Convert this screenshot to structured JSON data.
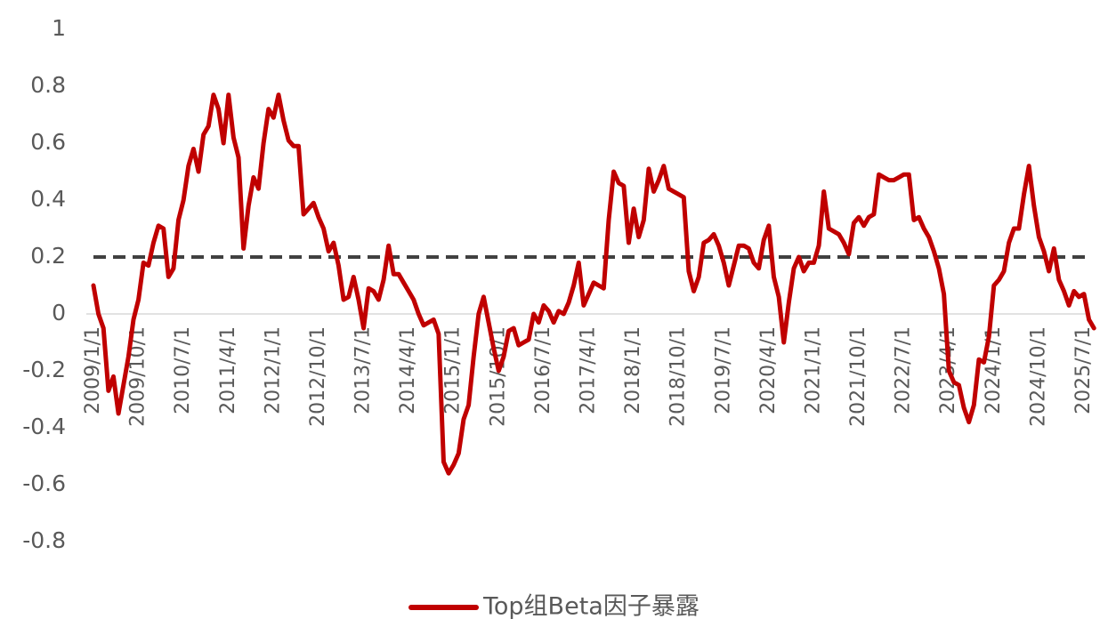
{
  "chart_data": {
    "type": "line",
    "categories": [
      "2009/1/1",
      null,
      null,
      null,
      null,
      null,
      null,
      null,
      null,
      "2009/10/1",
      null,
      null,
      null,
      null,
      null,
      null,
      null,
      null,
      "2010/7/1",
      null,
      null,
      null,
      null,
      null,
      null,
      null,
      null,
      "2011/4/1",
      null,
      null,
      null,
      null,
      null,
      null,
      null,
      null,
      "2012/1/1",
      null,
      null,
      null,
      null,
      null,
      null,
      null,
      null,
      "2012/10/1",
      null,
      null,
      null,
      null,
      null,
      null,
      null,
      null,
      "2013/7/1",
      null,
      null,
      null,
      null,
      null,
      null,
      null,
      null,
      "2014/4/1",
      null,
      null,
      null,
      null,
      null,
      null,
      null,
      null,
      "2015/1/1",
      null,
      null,
      null,
      null,
      null,
      null,
      null,
      null,
      "2015/10/1",
      null,
      null,
      null,
      null,
      null,
      null,
      null,
      null,
      "2016/7/1",
      null,
      null,
      null,
      null,
      null,
      null,
      null,
      null,
      "2017/4/1",
      null,
      null,
      null,
      null,
      null,
      null,
      null,
      null,
      "2018/1/1",
      null,
      null,
      null,
      null,
      null,
      null,
      null,
      null,
      "2018/10/1",
      null,
      null,
      null,
      null,
      null,
      null,
      null,
      null,
      "2019/7/1",
      null,
      null,
      null,
      null,
      null,
      null,
      null,
      null,
      "2020/4/1",
      null,
      null,
      null,
      null,
      null,
      null,
      null,
      null,
      "2021/1/1",
      null,
      null,
      null,
      null,
      null,
      null,
      null,
      null,
      "2021/10/1",
      null,
      null,
      null,
      null,
      null,
      null,
      null,
      null,
      "2022/7/1",
      null,
      null,
      null,
      null,
      null,
      null,
      null,
      null,
      "2023/4/1",
      null,
      null,
      null,
      null,
      null,
      null,
      null,
      null,
      "2024/1/1",
      null,
      null,
      null,
      null,
      null,
      null,
      null,
      null,
      "2024/10/1",
      null,
      null,
      null,
      null,
      null,
      null,
      null,
      null,
      "2025/7/1",
      null,
      null
    ],
    "series": [
      {
        "name": "Top组Beta因子暴露",
        "color": "#c00000",
        "values": [
          0.1,
          0.0,
          -0.05,
          -0.27,
          -0.22,
          -0.35,
          -0.25,
          -0.15,
          -0.02,
          0.05,
          0.18,
          0.17,
          0.25,
          0.31,
          0.3,
          0.13,
          0.16,
          0.33,
          0.4,
          0.52,
          0.58,
          0.5,
          0.63,
          0.66,
          0.77,
          0.72,
          0.6,
          0.77,
          0.62,
          0.55,
          0.23,
          0.38,
          0.48,
          0.44,
          0.6,
          0.72,
          0.69,
          0.77,
          0.68,
          0.61,
          0.59,
          0.59,
          0.35,
          0.37,
          0.39,
          0.34,
          0.3,
          0.22,
          0.25,
          0.17,
          0.05,
          0.06,
          0.13,
          0.05,
          -0.05,
          0.09,
          0.08,
          0.05,
          0.12,
          0.24,
          0.14,
          0.14,
          0.11,
          0.08,
          0.05,
          0.0,
          -0.04,
          -0.03,
          -0.02,
          -0.07,
          -0.52,
          -0.56,
          -0.53,
          -0.49,
          -0.37,
          -0.32,
          -0.15,
          0.0,
          0.06,
          -0.03,
          -0.12,
          -0.2,
          -0.15,
          -0.06,
          -0.05,
          -0.11,
          -0.1,
          -0.09,
          0.0,
          -0.03,
          0.03,
          0.01,
          -0.03,
          0.01,
          0.0,
          0.04,
          0.1,
          0.18,
          0.03,
          0.07,
          0.11,
          0.1,
          0.09,
          0.33,
          0.5,
          0.46,
          0.45,
          0.25,
          0.37,
          0.27,
          0.33,
          0.51,
          0.43,
          0.47,
          0.52,
          0.44,
          0.43,
          0.42,
          0.41,
          0.15,
          0.08,
          0.13,
          0.25,
          0.26,
          0.28,
          0.24,
          0.18,
          0.1,
          0.17,
          0.24,
          0.24,
          0.23,
          0.18,
          0.16,
          0.26,
          0.31,
          0.13,
          0.06,
          -0.1,
          0.04,
          0.16,
          0.2,
          0.15,
          0.18,
          0.18,
          0.24,
          0.43,
          0.3,
          0.29,
          0.28,
          0.25,
          0.21,
          0.32,
          0.34,
          0.31,
          0.34,
          0.35,
          0.49,
          0.48,
          0.47,
          0.47,
          0.48,
          0.49,
          0.49,
          0.33,
          0.34,
          0.3,
          0.27,
          0.22,
          0.16,
          0.07,
          -0.2,
          -0.24,
          -0.25,
          -0.33,
          -0.38,
          -0.32,
          -0.16,
          -0.17,
          -0.08,
          0.1,
          0.12,
          0.15,
          0.25,
          0.3,
          0.3,
          0.42,
          0.52,
          0.38,
          0.27,
          0.22,
          0.15,
          0.23,
          0.12,
          0.08,
          0.03,
          0.08,
          0.06,
          0.07,
          -0.02,
          -0.05
        ]
      }
    ],
    "ylim": [
      -0.8,
      1
    ],
    "yticks": [
      -0.8,
      -0.6,
      -0.4,
      -0.2,
      0,
      0.2,
      0.4,
      0.6,
      0.8,
      1
    ],
    "reference_line": 0.2,
    "reference_color": "#404040",
    "grid": false,
    "legend": "bottom"
  }
}
